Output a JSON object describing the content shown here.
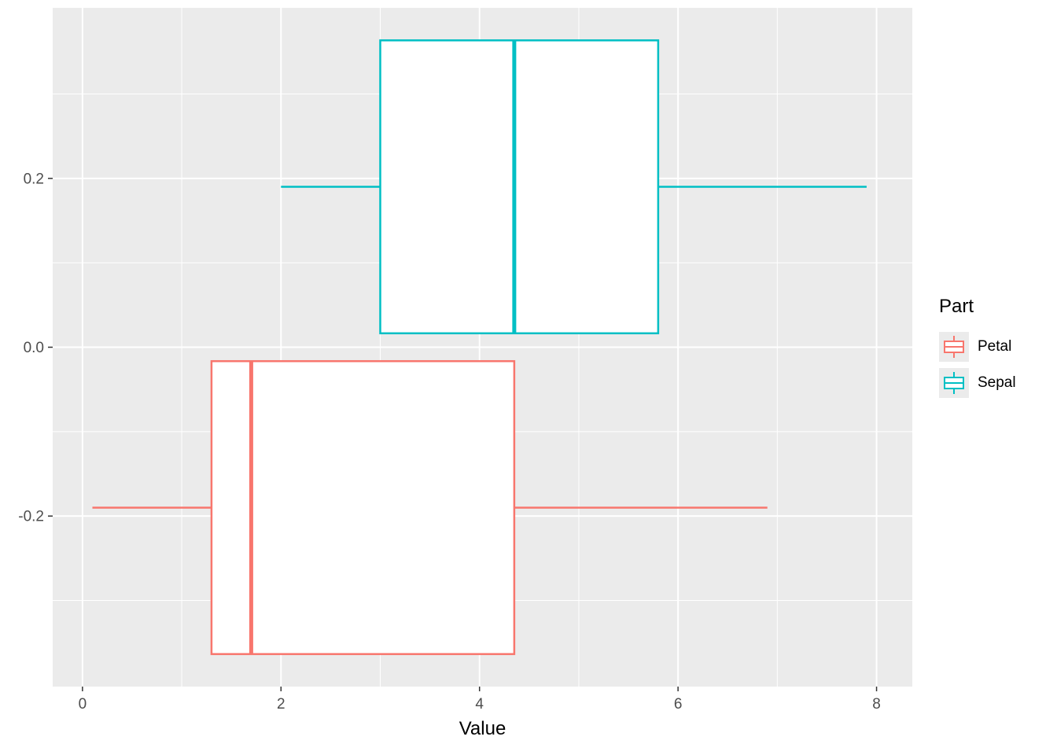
{
  "chart_data": {
    "type": "boxplot",
    "orientation": "horizontal",
    "title": "",
    "xlabel": "Value",
    "ylabel": "",
    "xlim": [
      -0.3,
      8.36
    ],
    "ylim": [
      -0.402,
      0.402
    ],
    "x_ticks": [
      0,
      2,
      4,
      6,
      8
    ],
    "x_tick_labels": [
      "0",
      "2",
      "4",
      "6",
      "8"
    ],
    "x_minor_ticks": [
      1,
      3,
      5,
      7
    ],
    "y_ticks": [
      -0.2,
      0.0,
      0.2
    ],
    "y_tick_labels": [
      "-0.2",
      "0.0",
      "0.2"
    ],
    "y_minor_ticks": [
      -0.3,
      -0.1,
      0.1,
      0.3
    ],
    "grid": "on",
    "legend_title": "Part",
    "legend_position": "right",
    "panel_background": "#ebebeb",
    "grid_color": "#ffffff",
    "tick_mark_color": "#333333",
    "tick_label_color": "#4d4d4d",
    "series": [
      {
        "name": "Petal",
        "color": "#f8766d",
        "y_center": -0.19,
        "box_half": 0.1735,
        "whisker_low": 0.1,
        "q1": 1.3,
        "median": 1.7,
        "q3": 4.35,
        "whisker_high": 6.9
      },
      {
        "name": "Sepal",
        "color": "#00bfc4",
        "y_center": 0.19,
        "box_half": 0.1735,
        "whisker_low": 2.0,
        "q1": 3.0,
        "median": 4.35,
        "q3": 5.8,
        "whisker_high": 7.9
      }
    ]
  }
}
